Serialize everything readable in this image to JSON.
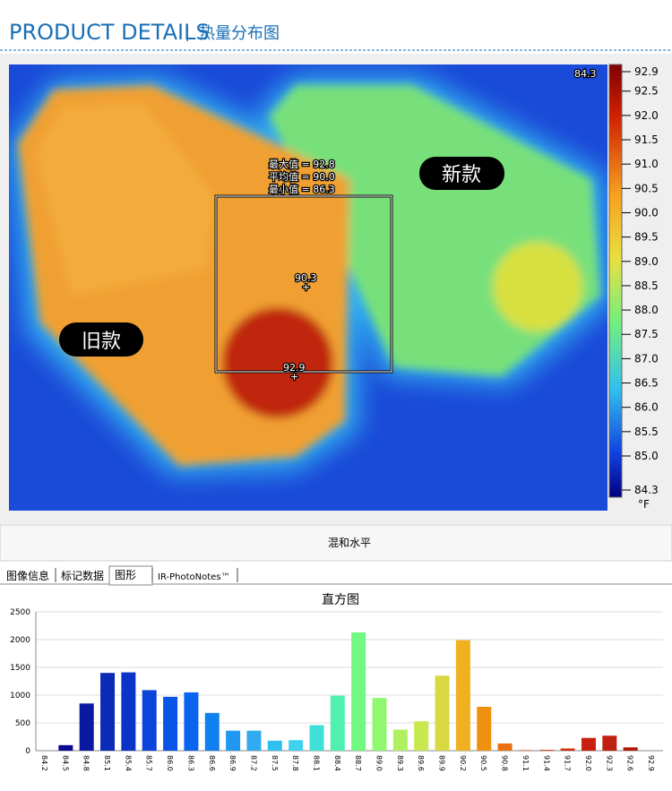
{
  "header": {
    "title": "PRODUCT DETAILS",
    "separator": "¦",
    "subtitle": "热量分布图"
  },
  "thermal": {
    "corner_value": "84.3",
    "stats": [
      "最大值 = 92.8",
      "平均值 = 90.0",
      "最小值 = 86.3"
    ],
    "center_value": "90.3",
    "max_value": "92.9",
    "label_new": "新款",
    "label_old": "旧款",
    "colorbar": {
      "lim": [
        84.3,
        92.9
      ],
      "unit": "°F",
      "ticks": [
        92.9,
        92.5,
        {
          "value": 92,
          "label": "92.0"
        },
        91.5,
        {
          "value": 91,
          "label": "91.0"
        },
        90.5,
        {
          "value": 90,
          "label": "90.0"
        },
        89.5,
        {
          "value": 89,
          "label": "89.0"
        },
        88.5,
        {
          "value": 88,
          "label": "88.0"
        },
        87.5,
        {
          "value": 87,
          "label": "87.0"
        },
        86.5,
        {
          "value": 86,
          "label": "86.0"
        },
        85.5,
        {
          "value": 85,
          "label": "85.0"
        },
        84.3
      ]
    }
  },
  "status": "混和水平",
  "tabs": [
    "图像信息",
    "标记数据",
    "图形",
    "IR-PhotoNotes™"
  ],
  "chart_data": {
    "type": "bar",
    "title": "直方图",
    "categories": [
      "84.2",
      "84.5",
      "84.8",
      "85.1",
      "85.4",
      "85.7",
      "86.0",
      "86.3",
      "86.6",
      "86.9",
      "87.2",
      "87.5",
      "87.8",
      "88.1",
      "88.4",
      "88.7",
      "89.0",
      "89.3",
      "89.6",
      "89.9",
      "90.2",
      "90.5",
      "90.8",
      "91.1",
      "91.4",
      "91.7",
      "92.0",
      "92.3",
      "92.6",
      "92.9"
    ],
    "values": [
      0,
      100,
      850,
      1400,
      1410,
      1090,
      970,
      1050,
      680,
      360,
      360,
      180,
      190,
      460,
      990,
      2130,
      950,
      380,
      530,
      1350,
      1990,
      790,
      130,
      10,
      15,
      40,
      230,
      270,
      60,
      0
    ],
    "colors": [
      "#0a0a90",
      "#0a0a90",
      "#0a1aa0",
      "#0a2ab8",
      "#0a34c8",
      "#0a44d8",
      "#0a54e8",
      "#0a64f0",
      "#1080f0",
      "#2098f0",
      "#30aaf0",
      "#30c0f0",
      "#40d0f0",
      "#40e0d8",
      "#50f0b0",
      "#70f880",
      "#90f870",
      "#b0f060",
      "#c8e850",
      "#d8d840",
      "#f0b020",
      "#f09010",
      "#e87010",
      "#e05010",
      "#d84010",
      "#d03010",
      "#c82010",
      "#c02010",
      "#b01808",
      "#a01008"
    ],
    "ylim": [
      0,
      2500
    ],
    "yticks": [
      0,
      500,
      1000,
      1500,
      2000,
      2500
    ],
    "grid": true
  }
}
